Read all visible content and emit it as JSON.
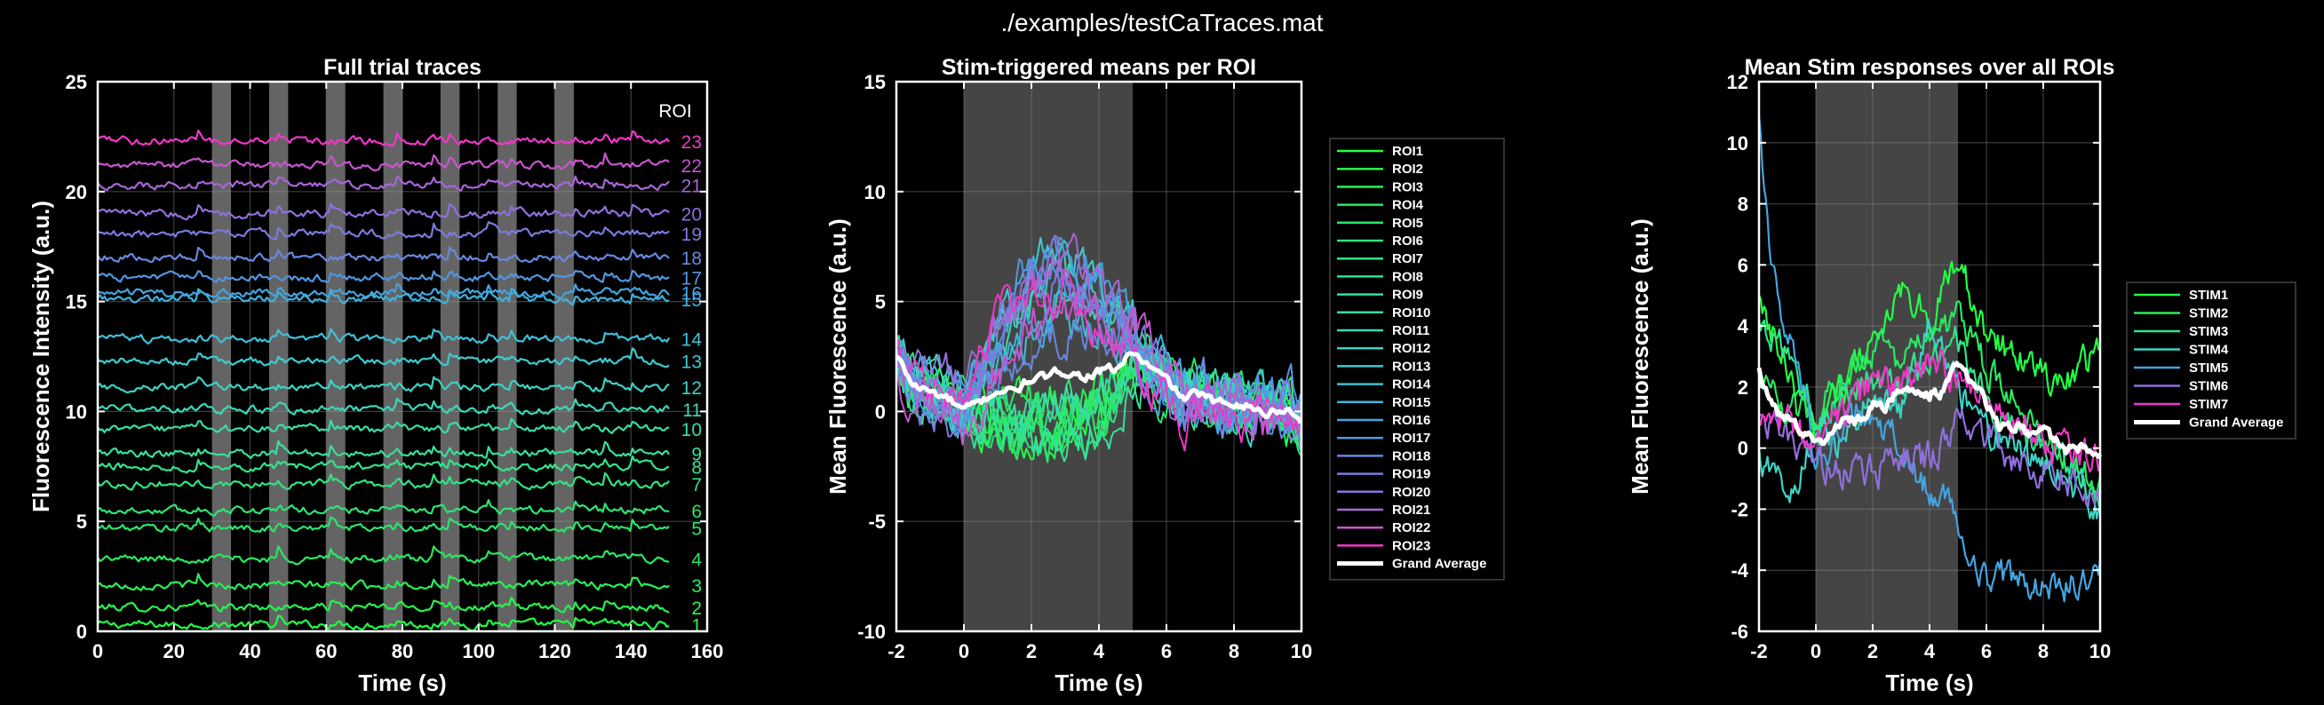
{
  "figure_title": "./examples/testCaTraces.mat",
  "chart_data": [
    {
      "type": "line",
      "title": "Full trial traces",
      "xlabel": "Time (s)",
      "ylabel": "Fluorescence Intensity (a.u.)",
      "xlim": [
        0,
        160
      ],
      "ylim": [
        0,
        25
      ],
      "xticks": [
        0,
        20,
        40,
        60,
        80,
        100,
        120,
        140,
        160
      ],
      "yticks": [
        0,
        5,
        10,
        15,
        20,
        25
      ],
      "grid": true,
      "legend_title": "ROI",
      "stim_periods": [
        [
          30,
          35
        ],
        [
          45,
          50
        ],
        [
          60,
          65
        ],
        [
          75,
          80
        ],
        [
          90,
          95
        ],
        [
          105,
          110
        ],
        [
          120,
          125
        ]
      ],
      "trace_end": 150,
      "series": [
        {
          "name": "1",
          "offset": 0.3,
          "color": "#22ff44"
        },
        {
          "name": "2",
          "offset": 1.1,
          "color": "#26f44c"
        },
        {
          "name": "3",
          "offset": 2.1,
          "color": "#2aee56"
        },
        {
          "name": "4",
          "offset": 3.3,
          "color": "#2ae860"
        },
        {
          "name": "5",
          "offset": 4.7,
          "color": "#2ae56a"
        },
        {
          "name": "6",
          "offset": 5.5,
          "color": "#2ee474"
        },
        {
          "name": "7",
          "offset": 6.7,
          "color": "#30e480"
        },
        {
          "name": "8",
          "offset": 7.5,
          "color": "#33e38c"
        },
        {
          "name": "9",
          "offset": 8.1,
          "color": "#36e09a"
        },
        {
          "name": "10",
          "offset": 9.2,
          "color": "#39dca8"
        },
        {
          "name": "11",
          "offset": 10.1,
          "color": "#3bd8b6"
        },
        {
          "name": "12",
          "offset": 11.1,
          "color": "#3dd2c4"
        },
        {
          "name": "13",
          "offset": 12.3,
          "color": "#3ecad0"
        },
        {
          "name": "14",
          "offset": 13.3,
          "color": "#3fbfd8"
        },
        {
          "name": "15",
          "offset": 15.1,
          "color": "#3fb2de"
        },
        {
          "name": "16",
          "offset": 15.4,
          "color": "#44a4e0"
        },
        {
          "name": "17",
          "offset": 16.1,
          "color": "#5296e0"
        },
        {
          "name": "18",
          "offset": 17.0,
          "color": "#6888e0"
        },
        {
          "name": "19",
          "offset": 18.1,
          "color": "#7c7ade"
        },
        {
          "name": "20",
          "offset": 19.0,
          "color": "#9070dc"
        },
        {
          "name": "21",
          "offset": 20.3,
          "color": "#a866d8"
        },
        {
          "name": "22",
          "offset": 21.2,
          "color": "#c855cf"
        },
        {
          "name": "23",
          "offset": 22.3,
          "color": "#ee38c8"
        }
      ]
    },
    {
      "type": "line",
      "title": "Stim-triggered means per ROI",
      "xlabel": "Time (s)",
      "ylabel": "Mean Fluorescence (a.u.)",
      "xlim": [
        -2,
        10
      ],
      "ylim": [
        -10,
        15
      ],
      "xticks": [
        -2,
        0,
        2,
        4,
        6,
        8,
        10
      ],
      "yticks": [
        -10,
        -5,
        0,
        5,
        10,
        15
      ],
      "grid": true,
      "stim_period": [
        0,
        5
      ],
      "legend_placement": "outside-right",
      "series": [
        {
          "name": "ROI1",
          "color": "#22ff44"
        },
        {
          "name": "ROI2",
          "color": "#26f44c"
        },
        {
          "name": "ROI3",
          "color": "#2aee56"
        },
        {
          "name": "ROI4",
          "color": "#2ae860"
        },
        {
          "name": "ROI5",
          "color": "#2ae56a"
        },
        {
          "name": "ROI6",
          "color": "#2ee474"
        },
        {
          "name": "ROI7",
          "color": "#30e480"
        },
        {
          "name": "ROI8",
          "color": "#33e38c"
        },
        {
          "name": "ROI9",
          "color": "#36e09a"
        },
        {
          "name": "ROI10",
          "color": "#39dca8"
        },
        {
          "name": "ROI11",
          "color": "#3bd8b6"
        },
        {
          "name": "ROI12",
          "color": "#3dd2c4"
        },
        {
          "name": "ROI13",
          "color": "#3ecad0"
        },
        {
          "name": "ROI14",
          "color": "#3fbfd8"
        },
        {
          "name": "ROI15",
          "color": "#3fb2de"
        },
        {
          "name": "ROI16",
          "color": "#44a4e0"
        },
        {
          "name": "ROI17",
          "color": "#5296e0"
        },
        {
          "name": "ROI18",
          "color": "#6888e0"
        },
        {
          "name": "ROI19",
          "color": "#7c7ade"
        },
        {
          "name": "ROI20",
          "color": "#9070dc"
        },
        {
          "name": "ROI21",
          "color": "#a866d8"
        },
        {
          "name": "ROI22",
          "color": "#c855cf"
        },
        {
          "name": "ROI23",
          "color": "#ee38c8"
        },
        {
          "name": "Grand Average",
          "color": "#ffffff"
        }
      ],
      "grand_average": {
        "x": [
          -2,
          -1.5,
          -1,
          -0.5,
          0,
          0.5,
          1,
          1.5,
          2,
          2.5,
          3,
          3.5,
          4,
          4.5,
          5,
          5.5,
          6,
          6.5,
          7,
          7.5,
          8,
          8.5,
          9,
          9.5,
          10
        ],
        "y": [
          2.5,
          1.2,
          0.9,
          0.6,
          0.0,
          0.4,
          1.0,
          0.9,
          1.5,
          1.5,
          1.9,
          1.6,
          1.8,
          1.9,
          2.7,
          2.0,
          1.4,
          0.6,
          0.8,
          0.3,
          0.5,
          0.2,
          -0.1,
          0.2,
          -0.4
        ]
      }
    },
    {
      "type": "line",
      "title": "Mean Stim responses over all ROIs",
      "xlabel": "Time (s)",
      "ylabel": "Mean Fluorescence (a.u.)",
      "xlim": [
        -2,
        10
      ],
      "ylim": [
        -6,
        12
      ],
      "xticks": [
        -2,
        0,
        2,
        4,
        6,
        8,
        10
      ],
      "yticks": [
        -6,
        -4,
        -2,
        0,
        2,
        4,
        6,
        8,
        10,
        12
      ],
      "grid": true,
      "stim_period": [
        0,
        5
      ],
      "legend_placement": "outside-right",
      "series": [
        {
          "name": "STIM1",
          "color": "#22ff44",
          "x": [
            -2,
            -1,
            0,
            1,
            2,
            3,
            4,
            5,
            6,
            7,
            8,
            9,
            10
          ],
          "y": [
            4.8,
            2.8,
            0.6,
            2.0,
            3.5,
            5.3,
            4.2,
            6.2,
            3.6,
            3.0,
            2.4,
            2.2,
            3.2
          ]
        },
        {
          "name": "STIM2",
          "color": "#2ae860",
          "x": [
            -2,
            -1,
            0,
            1,
            2,
            3,
            4,
            5,
            6,
            7,
            8,
            9,
            10
          ],
          "y": [
            2.0,
            1.4,
            0.8,
            2.6,
            3.2,
            2.8,
            3.6,
            4.4,
            2.6,
            1.6,
            0.6,
            -0.4,
            -1.2
          ]
        },
        {
          "name": "STIM3",
          "color": "#33e38c",
          "x": [
            -2,
            -1,
            0,
            1,
            2,
            3,
            4,
            5,
            6,
            7,
            8,
            9,
            10
          ],
          "y": [
            4.0,
            3.2,
            1.0,
            1.8,
            2.4,
            2.0,
            2.8,
            3.4,
            1.6,
            0.6,
            0.0,
            -0.6,
            -1.6
          ]
        },
        {
          "name": "STIM4",
          "color": "#3dd2c4",
          "x": [
            -2,
            -1,
            0,
            1,
            2,
            3,
            4,
            5,
            6,
            7,
            8,
            9,
            10
          ],
          "y": [
            -0.2,
            -1.6,
            0.6,
            0.2,
            2.2,
            1.4,
            4.2,
            2.0,
            0.4,
            -0.2,
            -0.6,
            -1.2,
            -2.0
          ]
        },
        {
          "name": "STIM5",
          "color": "#44a4e0",
          "x": [
            -2,
            -1.8,
            -1.5,
            -1,
            -0.5,
            0,
            1,
            2,
            3,
            4,
            5,
            6,
            7,
            8,
            9,
            10
          ],
          "y": [
            10.6,
            8.0,
            5.8,
            3.8,
            2.0,
            -0.6,
            0.8,
            1.2,
            0.0,
            -1.4,
            -2.2,
            -4.6,
            -4.2,
            -4.8,
            -4.4,
            -3.8
          ]
        },
        {
          "name": "STIM6",
          "color": "#9070dc",
          "x": [
            -2,
            -1,
            0,
            1,
            2,
            3,
            4,
            5,
            6,
            7,
            8,
            9,
            10
          ],
          "y": [
            0.8,
            0.4,
            -0.4,
            -0.8,
            -0.8,
            -0.2,
            -0.4,
            1.0,
            0.2,
            -0.4,
            -0.6,
            -1.0,
            -1.6
          ]
        },
        {
          "name": "STIM7",
          "color": "#ee38c8",
          "x": [
            -2,
            -1,
            0,
            1,
            2,
            3,
            4,
            5,
            6,
            7,
            8,
            9,
            10
          ],
          "y": [
            0.6,
            0.8,
            0.0,
            1.0,
            2.2,
            2.0,
            3.0,
            2.4,
            1.6,
            0.8,
            0.2,
            -0.2,
            -0.4
          ]
        },
        {
          "name": "Grand Average",
          "color": "#ffffff",
          "x": [
            -2,
            -1.5,
            -1,
            -0.5,
            0,
            0.5,
            1,
            1.5,
            2,
            2.5,
            3,
            3.5,
            4,
            4.5,
            5,
            5.5,
            6,
            6.5,
            7,
            7.5,
            8,
            8.5,
            9,
            9.5,
            10
          ],
          "y": [
            2.5,
            1.2,
            0.9,
            0.6,
            0.0,
            0.4,
            1.0,
            0.9,
            1.5,
            1.5,
            1.9,
            1.6,
            1.8,
            1.9,
            2.7,
            2.0,
            1.4,
            0.6,
            0.8,
            0.3,
            0.5,
            0.2,
            -0.1,
            0.2,
            -0.4
          ]
        }
      ]
    }
  ]
}
